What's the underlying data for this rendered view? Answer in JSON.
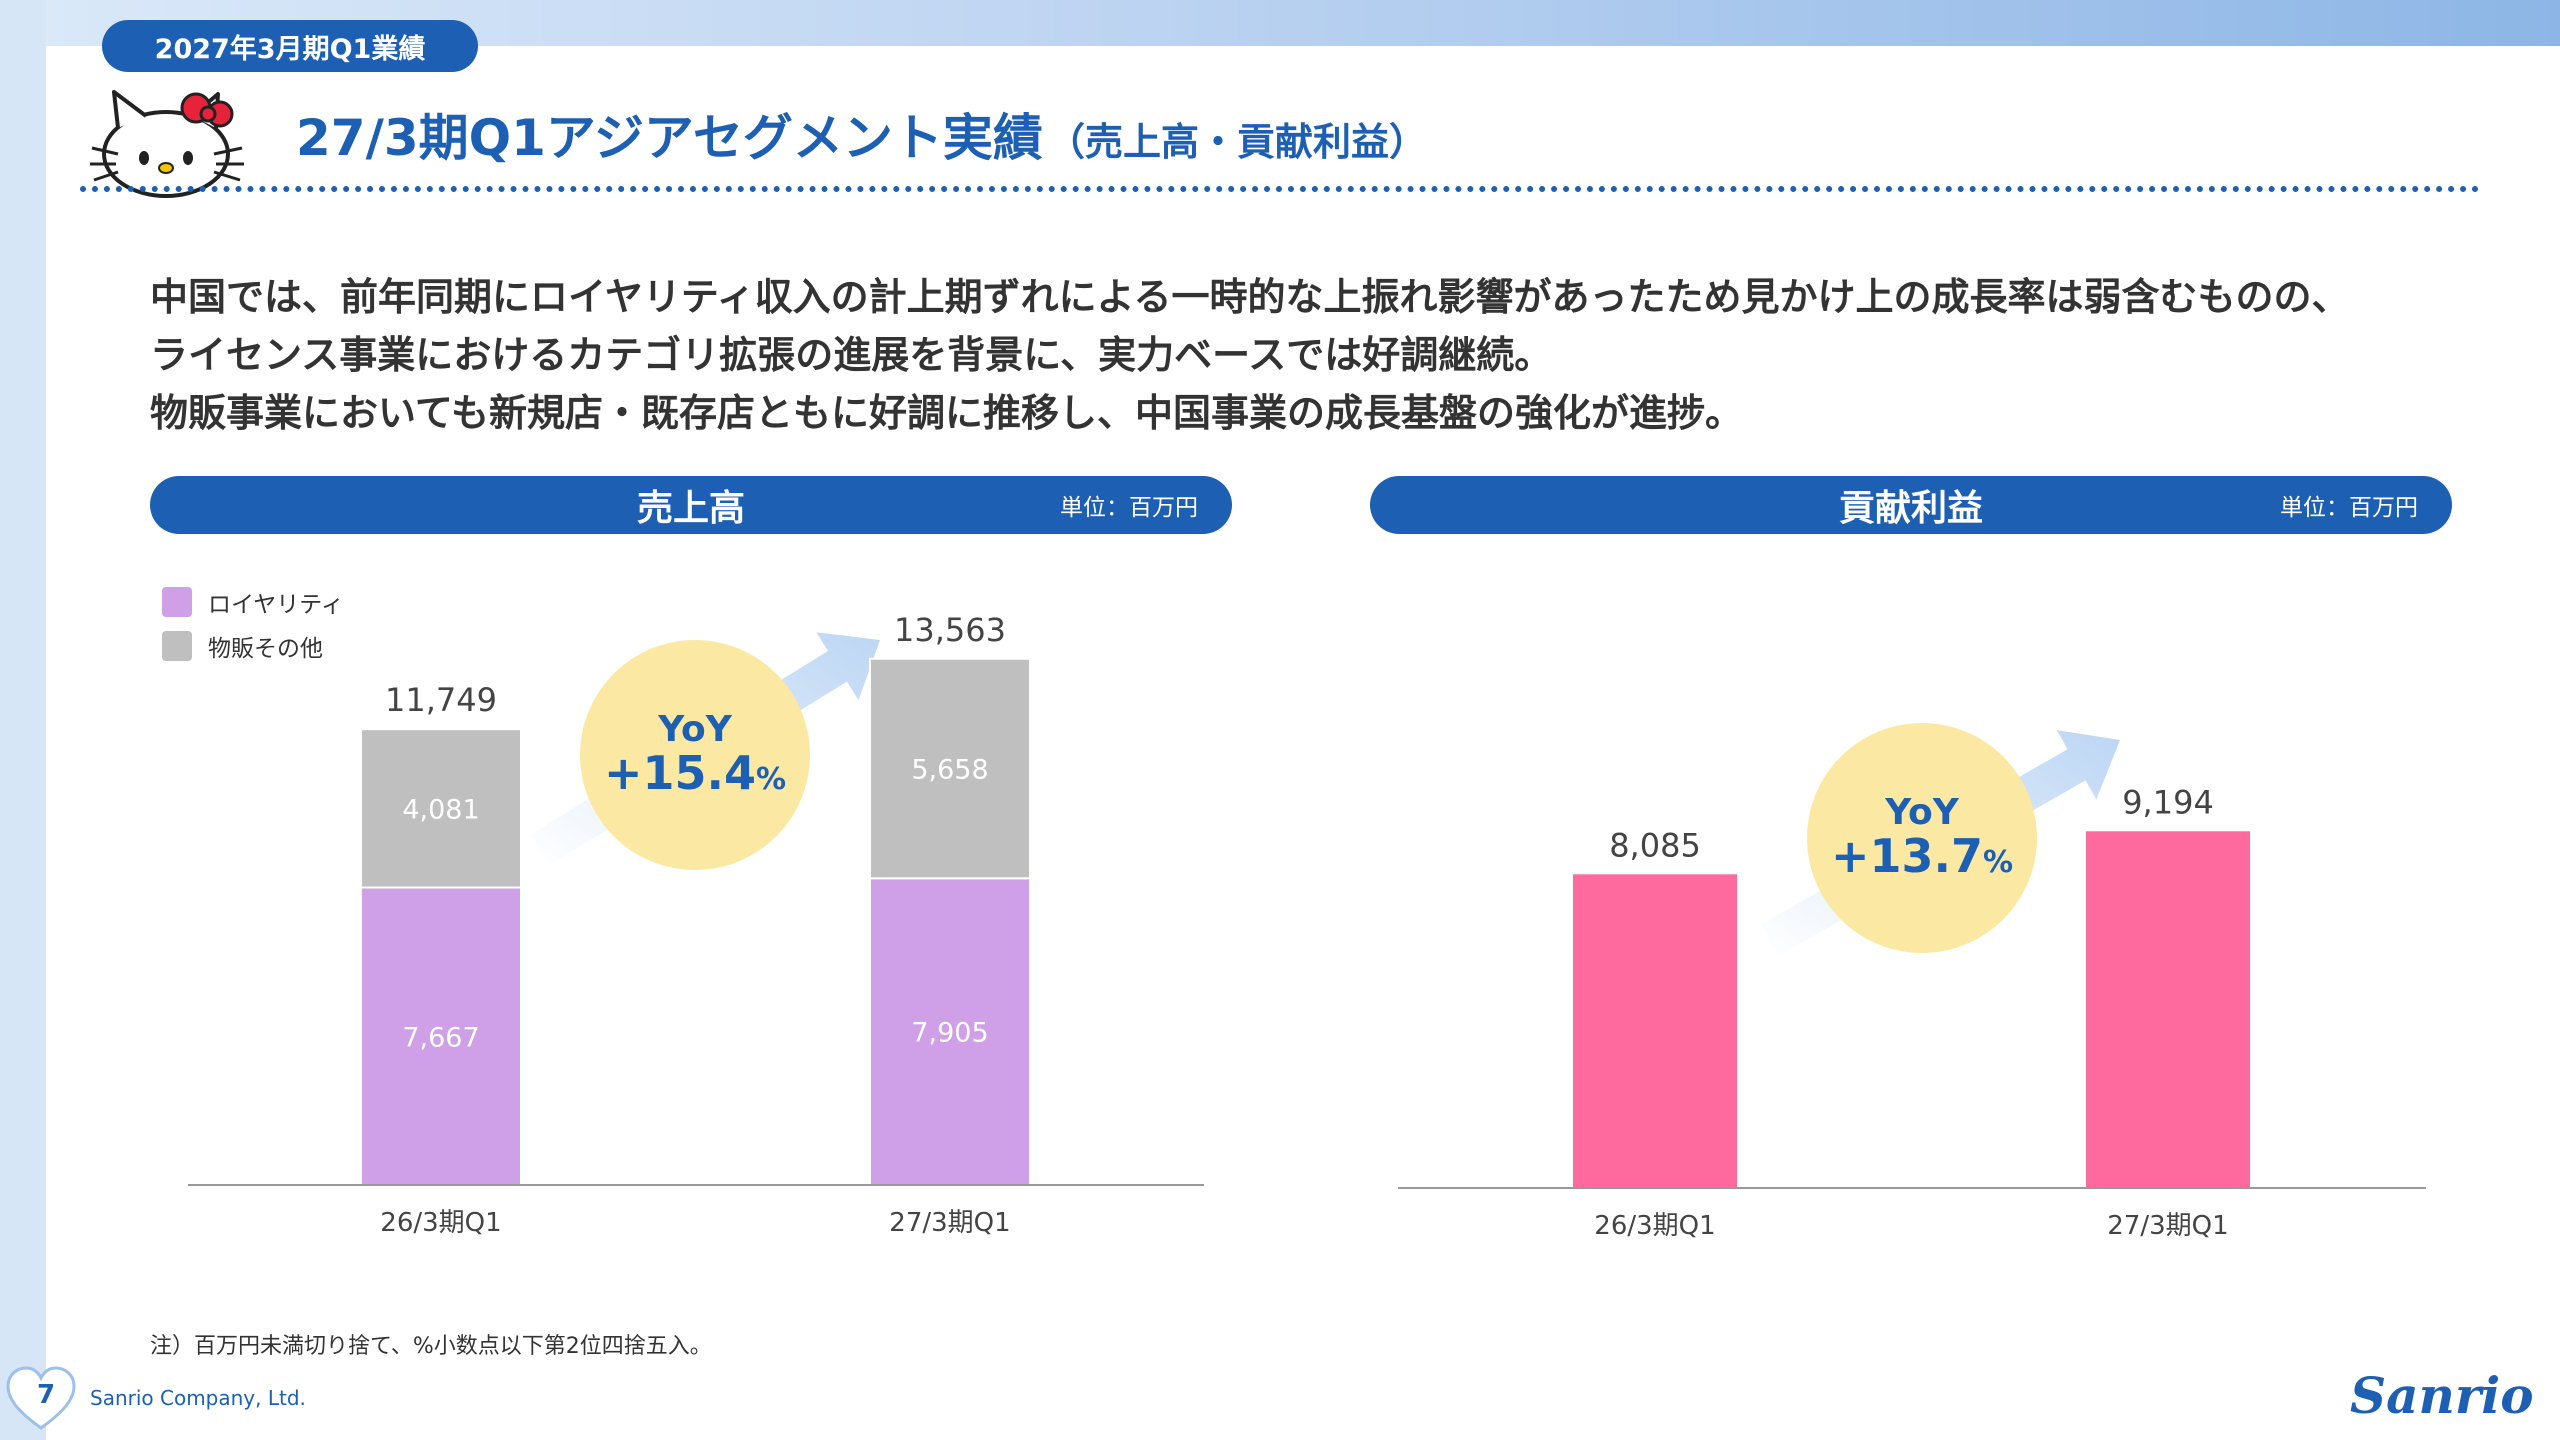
{
  "header": {
    "tab_label": "2027年3月期Q1業績"
  },
  "title": {
    "main": "27/3期Q1アジアセグメント実績",
    "sub": "（売上高・貢献利益）"
  },
  "body": {
    "lines": [
      "中国では、前年同期にロイヤリティ収入の計上期ずれによる一時的な上振れ影響があったため見かけ上の成長率は弱含むものの、",
      "ライセンス事業におけるカテゴリ拡張の進展を背景に、実力ベースでは好調継続。",
      "物販事業においても新規店・既存店ともに好調に推移し、中国事業の成長基盤の強化が進捗。"
    ]
  },
  "panels": {
    "sales": {
      "title": "売上高",
      "unit": "単位：百万円"
    },
    "profit": {
      "title": "貢献利益",
      "unit": "単位：百万円"
    }
  },
  "legend": [
    {
      "label": "ロイヤリティ",
      "color": "#cf9fe7"
    },
    {
      "label": "物販その他",
      "color": "#bfbfbf"
    }
  ],
  "chart_data": [
    {
      "type": "bar",
      "stacked": true,
      "title": "売上高",
      "unit": "単位：百万円",
      "categories": [
        "26/3期Q1",
        "27/3期Q1"
      ],
      "series": [
        {
          "name": "ロイヤリティ",
          "values": [
            7667,
            7905
          ],
          "color": "#cf9fe7"
        },
        {
          "name": "物販その他",
          "values": [
            4081,
            5658
          ],
          "color": "#bfbfbf"
        }
      ],
      "total_labels": [
        "11,749",
        "13,563"
      ],
      "segment_labels": [
        [
          "7,667",
          "7,905"
        ],
        [
          "4,081",
          "5,658"
        ]
      ],
      "yoy": {
        "label": "YoY",
        "value": "+15.4",
        "suffix": "%"
      },
      "ylim": [
        0,
        14000
      ]
    },
    {
      "type": "bar",
      "title": "貢献利益",
      "unit": "単位：百万円",
      "categories": [
        "26/3期Q1",
        "27/3期Q1"
      ],
      "values": [
        8085,
        9194
      ],
      "value_labels": [
        "8,085",
        "9,194"
      ],
      "color": "#ff6a9e",
      "yoy": {
        "label": "YoY",
        "value": "+13.7",
        "suffix": "%"
      },
      "ylim": [
        0,
        14000
      ]
    }
  ],
  "colors": {
    "brand_blue": "#1d5fb3",
    "yoy_circle": "#fbe9a3",
    "arrow": "#bcd6f4",
    "axis": "#999999"
  },
  "footnote": "注）百万円未満切り捨て、%小数点以下第2位四捨五入。",
  "footer": {
    "page_number": "7",
    "company": "Sanrio Company, Ltd.",
    "logo_text": "Sanrio"
  }
}
